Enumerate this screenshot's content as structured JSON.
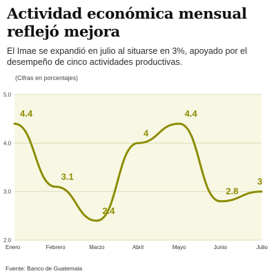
{
  "header": {
    "title": "Actividad económica mensual reflejó mejora",
    "subtitle": "El Imae se expandió en julio al situarse en 3%, apoyado por el desempeño de cinco actividades productivas."
  },
  "chart_data": {
    "type": "line",
    "units_note": "(Cifras en porcentajes)",
    "categories": [
      "Enero",
      "Febrero",
      "Marzo",
      "Abril",
      "Mayo",
      "Junio",
      "Julio"
    ],
    "series": [
      {
        "values": [
          4.4,
          3.1,
          2.4,
          4.0,
          4.4,
          2.8,
          3.0
        ],
        "data_labels": [
          "4.4",
          "3.1",
          "2.4",
          "4",
          "4.4",
          "2.8",
          "3"
        ],
        "color": "#8c8c00"
      }
    ],
    "ylim": [
      2.0,
      5.0
    ],
    "yticks": [
      "2.0",
      "3.0",
      "4.0",
      "5.0"
    ],
    "xlabel": "",
    "ylabel": "",
    "grid": true,
    "plot_background": "#f7f7e4",
    "grid_color": "#dcdcb8"
  },
  "footer": {
    "source": "Fuente: Banco de Guatemala"
  }
}
